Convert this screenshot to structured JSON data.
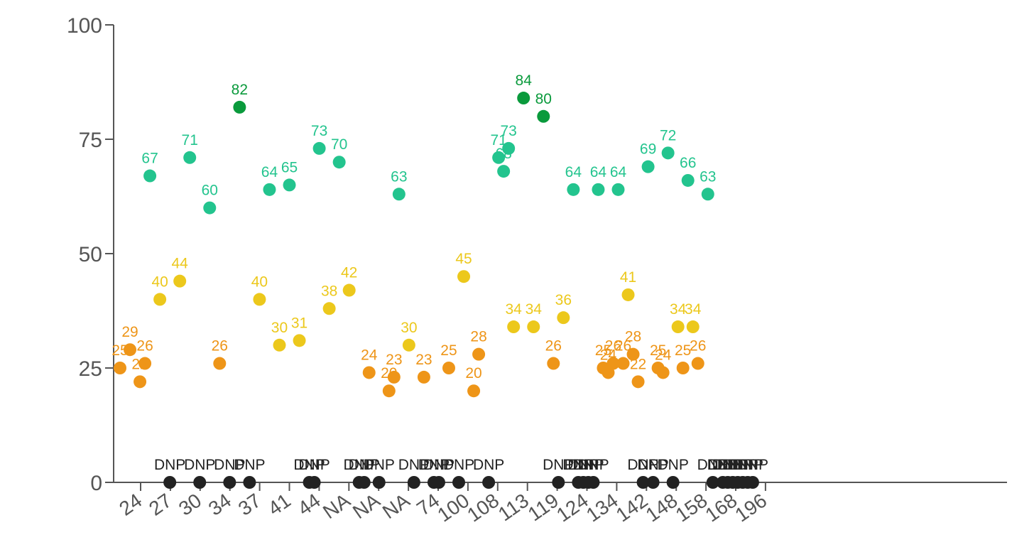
{
  "chart_data": {
    "type": "scatter",
    "title": "",
    "xlabel": "",
    "ylabel": "",
    "ylim": [
      0,
      100
    ],
    "yticks": [
      0,
      25,
      50,
      75,
      100
    ],
    "xtick_labels": [
      "24",
      "27",
      "30",
      "34",
      "37",
      "41",
      "44",
      "NA",
      "NA",
      "NA",
      "74",
      "100",
      "108",
      "113",
      "119",
      "124",
      "134",
      "142",
      "148",
      "158",
      "168",
      "196"
    ],
    "colors": {
      "high": "#0a9a3c",
      "good": "#23c48e",
      "mid": "#ecc81c",
      "low": "#ee9518",
      "dnp": "#222222"
    },
    "points": [
      {
        "x": 1,
        "y": 25,
        "label": "25"
      },
      {
        "x": 2,
        "y": 29,
        "label": "29"
      },
      {
        "x": 3,
        "y": 22,
        "label": "22"
      },
      {
        "x": 3.5,
        "y": 26,
        "label": "26"
      },
      {
        "x": 4,
        "y": 67,
        "label": "67"
      },
      {
        "x": 5,
        "y": 40,
        "label": "40"
      },
      {
        "x": 6,
        "y": 0,
        "label": "DNP"
      },
      {
        "x": 7,
        "y": 44,
        "label": "44"
      },
      {
        "x": 8,
        "y": 71,
        "label": "71"
      },
      {
        "x": 9,
        "y": 0,
        "label": "DNP"
      },
      {
        "x": 10,
        "y": 60,
        "label": "60"
      },
      {
        "x": 11,
        "y": 26,
        "label": "26"
      },
      {
        "x": 12,
        "y": 0,
        "label": "DNP"
      },
      {
        "x": 13,
        "y": 82,
        "label": "82"
      },
      {
        "x": 14,
        "y": 0,
        "label": "DNP"
      },
      {
        "x": 15,
        "y": 40,
        "label": "40"
      },
      {
        "x": 16,
        "y": 64,
        "label": "64"
      },
      {
        "x": 17,
        "y": 30,
        "label": "30"
      },
      {
        "x": 18,
        "y": 65,
        "label": "65"
      },
      {
        "x": 19,
        "y": 31,
        "label": "31"
      },
      {
        "x": 20,
        "y": 0,
        "label": "DNP"
      },
      {
        "x": 20.5,
        "y": 0,
        "label": "DNP"
      },
      {
        "x": 21,
        "y": 73,
        "label": "73"
      },
      {
        "x": 22,
        "y": 38,
        "label": "38"
      },
      {
        "x": 23,
        "y": 70,
        "label": "70"
      },
      {
        "x": 24,
        "y": 42,
        "label": "42"
      },
      {
        "x": 25,
        "y": 0,
        "label": "DNP"
      },
      {
        "x": 25.5,
        "y": 0,
        "label": "DNP"
      },
      {
        "x": 26,
        "y": 24,
        "label": "24"
      },
      {
        "x": 27,
        "y": 0,
        "label": "DNP"
      },
      {
        "x": 28,
        "y": 20,
        "label": "20"
      },
      {
        "x": 28.5,
        "y": 23,
        "label": "23"
      },
      {
        "x": 29,
        "y": 63,
        "label": "63"
      },
      {
        "x": 30,
        "y": 30,
        "label": "30"
      },
      {
        "x": 30.5,
        "y": 0,
        "label": "DNP"
      },
      {
        "x": 31.5,
        "y": 23,
        "label": "23"
      },
      {
        "x": 32.5,
        "y": 0,
        "label": "DNP"
      },
      {
        "x": 33,
        "y": 0,
        "label": "DNP"
      },
      {
        "x": 34,
        "y": 25,
        "label": "25"
      },
      {
        "x": 35,
        "y": 0,
        "label": "DNP"
      },
      {
        "x": 35.5,
        "y": 45,
        "label": "45"
      },
      {
        "x": 36.5,
        "y": 20,
        "label": "20"
      },
      {
        "x": 37,
        "y": 28,
        "label": "28"
      },
      {
        "x": 38,
        "y": 0,
        "label": "DNP"
      },
      {
        "x": 39,
        "y": 71,
        "label": "71"
      },
      {
        "x": 39.5,
        "y": 68,
        "label": "68"
      },
      {
        "x": 40,
        "y": 73,
        "label": "73"
      },
      {
        "x": 40.5,
        "y": 34,
        "label": "34"
      },
      {
        "x": 41.5,
        "y": 84,
        "label": "84"
      },
      {
        "x": 42.5,
        "y": 34,
        "label": "34"
      },
      {
        "x": 43.5,
        "y": 80,
        "label": "80"
      },
      {
        "x": 44.5,
        "y": 26,
        "label": "26"
      },
      {
        "x": 45,
        "y": 0,
        "label": "DNP"
      },
      {
        "x": 45.5,
        "y": 36,
        "label": "36"
      },
      {
        "x": 46.5,
        "y": 64,
        "label": "64"
      },
      {
        "x": 47,
        "y": 0,
        "label": "DNP"
      },
      {
        "x": 47.5,
        "y": 0,
        "label": "DNP"
      },
      {
        "x": 48,
        "y": 0,
        "label": "DNP"
      },
      {
        "x": 48.5,
        "y": 0,
        "label": "DNP"
      },
      {
        "x": 49,
        "y": 64,
        "label": "64"
      },
      {
        "x": 49.5,
        "y": 25,
        "label": "25"
      },
      {
        "x": 50,
        "y": 24,
        "label": "24"
      },
      {
        "x": 50.5,
        "y": 26,
        "label": "26"
      },
      {
        "x": 51,
        "y": 64,
        "label": "64"
      },
      {
        "x": 51.5,
        "y": 26,
        "label": "26"
      },
      {
        "x": 52,
        "y": 41,
        "label": "41"
      },
      {
        "x": 52.5,
        "y": 28,
        "label": "28"
      },
      {
        "x": 53,
        "y": 22,
        "label": "22"
      },
      {
        "x": 53.5,
        "y": 0,
        "label": "DNP"
      },
      {
        "x": 54,
        "y": 69,
        "label": "69"
      },
      {
        "x": 54.5,
        "y": 0,
        "label": "DNP"
      },
      {
        "x": 55,
        "y": 25,
        "label": "25"
      },
      {
        "x": 55.5,
        "y": 24,
        "label": "24"
      },
      {
        "x": 56,
        "y": 72,
        "label": "72"
      },
      {
        "x": 56.5,
        "y": 0,
        "label": "DNP"
      },
      {
        "x": 57,
        "y": 34,
        "label": "34"
      },
      {
        "x": 57.5,
        "y": 25,
        "label": "25"
      },
      {
        "x": 58,
        "y": 66,
        "label": "66"
      },
      {
        "x": 58.5,
        "y": 34,
        "label": "34"
      },
      {
        "x": 59,
        "y": 26,
        "label": "26"
      },
      {
        "x": 60,
        "y": 63,
        "label": "63"
      },
      {
        "x": 60.5,
        "y": 0,
        "label": "DNP"
      },
      {
        "x": 61.5,
        "y": 0,
        "label": "DNP"
      },
      {
        "x": 62,
        "y": 0,
        "label": "DNP"
      },
      {
        "x": 62.5,
        "y": 0,
        "label": "DNP"
      },
      {
        "x": 63,
        "y": 0,
        "label": "DNP"
      },
      {
        "x": 63.5,
        "y": 0,
        "label": "DNP"
      },
      {
        "x": 64,
        "y": 0,
        "label": "DNP"
      },
      {
        "x": 64.5,
        "y": 0,
        "label": "DNP"
      }
    ]
  }
}
